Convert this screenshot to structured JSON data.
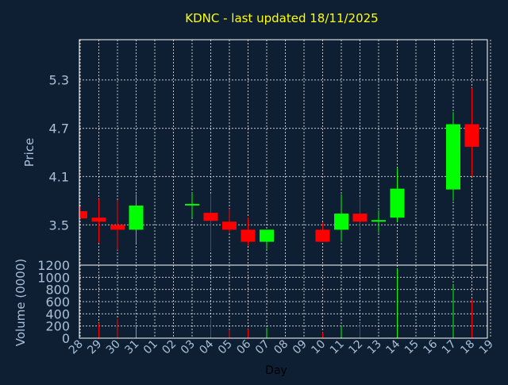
{
  "chart_data": {
    "type": "candlestick",
    "title": "KDNC - last updated 18/11/2025",
    "xlabel": "Day",
    "ylabel": "Price",
    "volume_label": "Volume (0000)",
    "grid": true,
    "price_ylim": [
      3.0,
      5.8
    ],
    "price_ticks": [
      "3.5",
      "4.1",
      "4.7",
      "5.3"
    ],
    "volume_ylim": [
      0,
      1200
    ],
    "volume_ticks": [
      "0",
      "200",
      "400",
      "600",
      "800",
      "1000",
      "1200"
    ],
    "x_ticks": [
      "28",
      "29",
      "30",
      "31",
      "01",
      "02",
      "03",
      "04",
      "05",
      "06",
      "07",
      "08",
      "09",
      "10",
      "11",
      "12",
      "13",
      "14",
      "15",
      "16",
      "17",
      "18",
      "19"
    ],
    "candles": [
      {
        "day": "28",
        "open": 3.67,
        "high": 3.73,
        "low": 3.58,
        "close": 3.58,
        "volume": 0
      },
      {
        "day": "29",
        "open": 3.59,
        "high": 3.82,
        "low": 3.28,
        "close": 3.54,
        "volume": 250
      },
      {
        "day": "30",
        "open": 3.5,
        "high": 3.81,
        "low": 3.19,
        "close": 3.44,
        "volume": 320
      },
      {
        "day": "31",
        "open": 3.44,
        "high": 3.88,
        "low": 3.27,
        "close": 3.74,
        "volume": 220
      },
      {
        "day": "03",
        "open": 3.74,
        "high": 3.9,
        "low": 3.59,
        "close": 3.75,
        "volume": 0
      },
      {
        "day": "04",
        "open": 3.65,
        "high": 3.88,
        "low": 3.18,
        "close": 3.55,
        "volume": 320
      },
      {
        "day": "05",
        "open": 3.54,
        "high": 3.7,
        "low": 3.4,
        "close": 3.44,
        "volume": 140
      },
      {
        "day": "06",
        "open": 3.44,
        "high": 3.59,
        "low": 3.24,
        "close": 3.29,
        "volume": 150
      },
      {
        "day": "07",
        "open": 3.29,
        "high": 3.44,
        "low": 3.2,
        "close": 3.44,
        "volume": 170
      },
      {
        "day": "10",
        "open": 3.44,
        "high": 3.53,
        "low": 3.29,
        "close": 3.29,
        "volume": 100
      },
      {
        "day": "11",
        "open": 3.44,
        "high": 3.88,
        "low": 3.29,
        "close": 3.64,
        "volume": 210
      },
      {
        "day": "12",
        "open": 3.64,
        "high": 3.84,
        "low": 3.4,
        "close": 3.54,
        "volume": 250
      },
      {
        "day": "13",
        "open": 3.54,
        "high": 3.68,
        "low": 3.4,
        "close": 3.55,
        "volume": 0
      },
      {
        "day": "14",
        "open": 3.59,
        "high": 4.2,
        "low": 3.54,
        "close": 3.95,
        "volume": 1140
      },
      {
        "day": "17",
        "open": 3.94,
        "high": 4.9,
        "low": 3.8,
        "close": 4.75,
        "volume": 870
      },
      {
        "day": "18",
        "open": 4.75,
        "high": 5.2,
        "low": 4.1,
        "close": 4.47,
        "volume": 640
      }
    ]
  },
  "colors": {
    "background": "#0f1f33",
    "plot_border": "#ffffff",
    "grid": "#ffffff",
    "title": "#ffff00",
    "axis_label": "#a9bfd8",
    "tick_label": "#a9bfd8",
    "x_axis_label": "#000000",
    "up": "#00ff00",
    "down": "#ff0000"
  }
}
